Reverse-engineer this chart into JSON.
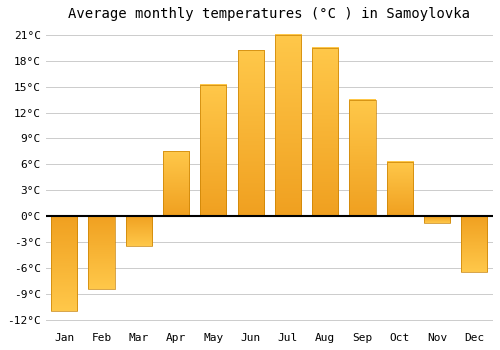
{
  "title": "Average monthly temperatures (°C ) in Samoylovka",
  "months": [
    "Jan",
    "Feb",
    "Mar",
    "Apr",
    "May",
    "Jun",
    "Jul",
    "Aug",
    "Sep",
    "Oct",
    "Nov",
    "Dec"
  ],
  "values": [
    -11,
    -8.5,
    -3.5,
    7.5,
    15.2,
    19.2,
    21.0,
    19.5,
    13.5,
    6.3,
    -0.8,
    -6.5
  ],
  "bar_color_top": "#FFC84A",
  "bar_color_bottom": "#F0A020",
  "bar_edge_color": "#C88000",
  "ylim_min": -13,
  "ylim_max": 22,
  "yticks": [
    -12,
    -9,
    -6,
    -3,
    0,
    3,
    6,
    9,
    12,
    15,
    18,
    21
  ],
  "ytick_labels": [
    "-12°C",
    "-9°C",
    "-6°C",
    "-3°C",
    "0°C",
    "3°C",
    "6°C",
    "9°C",
    "12°C",
    "15°C",
    "18°C",
    "21°C"
  ],
  "background_color": "#ffffff",
  "plot_bg_color": "#ffffff",
  "grid_color": "#cccccc",
  "title_fontsize": 10,
  "tick_fontsize": 8,
  "bar_width": 0.7
}
